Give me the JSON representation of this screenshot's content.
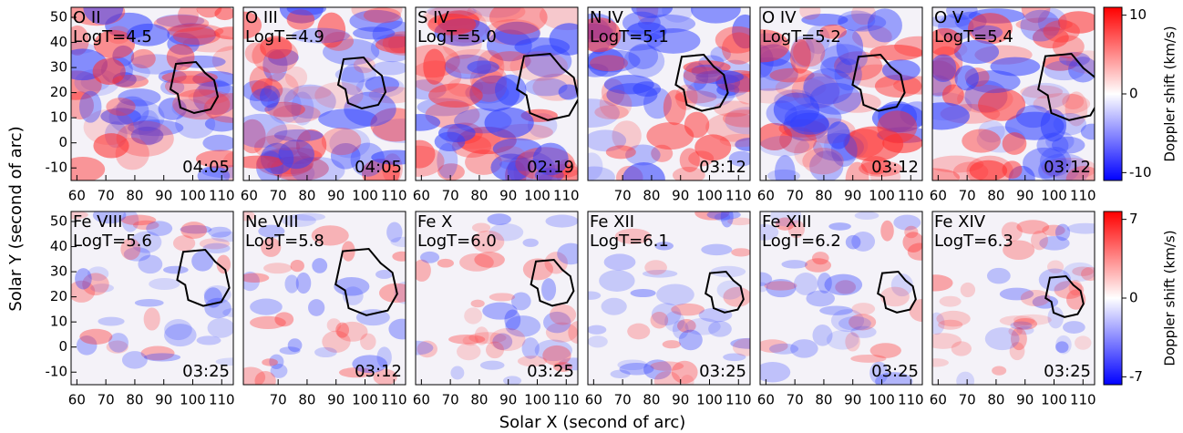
{
  "x_label": "Solar X (second of arc)",
  "y_label": "Solar Y (second of arc)",
  "chart_data": [
    {
      "type": "heatmap",
      "ion": "O II",
      "logt": "LogT=4.5",
      "time": "04:05",
      "xlim": [
        58,
        114
      ],
      "xticks": [
        60,
        70,
        80,
        90,
        100,
        110
      ],
      "ylim": [
        -15,
        54
      ],
      "yticks": [
        -10,
        0,
        10,
        20,
        30,
        40,
        50
      ]
    },
    {
      "type": "heatmap",
      "ion": "O III",
      "logt": "LogT=4.9",
      "time": "04:05",
      "xlim": [
        58,
        114
      ],
      "xticks": [
        60,
        70,
        80,
        90,
        100,
        110
      ]
    },
    {
      "type": "heatmap",
      "ion": "S IV",
      "logt": "LogT=5.0",
      "time": "02:19",
      "xlim": [
        58,
        114
      ],
      "xticks": [
        60,
        70,
        80,
        90,
        100,
        110
      ]
    },
    {
      "type": "heatmap",
      "ion": "N IV",
      "logt": "LogT=5.1",
      "time": "03:12",
      "xlim": [
        58,
        114
      ],
      "xticks": [
        70,
        80,
        90,
        100,
        110
      ]
    },
    {
      "type": "heatmap",
      "ion": "O IV",
      "logt": "LogT=5.2",
      "time": "03:12",
      "xlim": [
        58,
        114
      ],
      "xticks": [
        60,
        70,
        80,
        90,
        100,
        110
      ]
    },
    {
      "type": "heatmap",
      "ion": "O V",
      "logt": "LogT=5.4",
      "time": "03:12",
      "xlim": [
        58,
        114
      ],
      "xticks": [
        60,
        70,
        80,
        90,
        100,
        110
      ]
    },
    {
      "type": "heatmap",
      "ion": "Fe VIII",
      "logt": "LogT=5.6",
      "time": "03:25",
      "xlim": [
        58,
        114
      ],
      "xticks": [
        60,
        70,
        80,
        90,
        100,
        110
      ],
      "ylim": [
        -15,
        54
      ],
      "yticks": [
        -10,
        0,
        10,
        20,
        30,
        40,
        50
      ]
    },
    {
      "type": "heatmap",
      "ion": "Ne VIII",
      "logt": "LogT=5.8",
      "time": "03:12",
      "xlim": [
        58,
        114
      ],
      "xticks": [
        70,
        80,
        90,
        100,
        110
      ]
    },
    {
      "type": "heatmap",
      "ion": "Fe X",
      "logt": "LogT=6.0",
      "time": "03:25",
      "xlim": [
        58,
        114
      ],
      "xticks": [
        60,
        70,
        80,
        90,
        100,
        110
      ]
    },
    {
      "type": "heatmap",
      "ion": "Fe XII",
      "logt": "LogT=6.1",
      "time": "03:25",
      "xlim": [
        58,
        114
      ],
      "xticks": [
        60,
        70,
        80,
        90,
        100,
        110
      ]
    },
    {
      "type": "heatmap",
      "ion": "Fe XIII",
      "logt": "LogT=6.2",
      "time": "03:25",
      "xlim": [
        58,
        114
      ],
      "xticks": [
        60,
        70,
        80,
        90,
        100,
        110
      ]
    },
    {
      "type": "heatmap",
      "ion": "Fe XIV",
      "logt": "LogT=6.3",
      "time": "03:25",
      "xlim": [
        58,
        114
      ],
      "xticks": [
        60,
        70,
        80,
        90,
        100,
        110
      ]
    },
    {
      "type": "colorbar",
      "label": "Doppler shift (km/s)",
      "ylim": [
        -11,
        11
      ],
      "yticks": [
        -10,
        0,
        10
      ],
      "colors": [
        "#0000ff",
        "#ffffff",
        "#ff0000"
      ]
    },
    {
      "type": "colorbar",
      "label": "Doppler shift (km/s)",
      "ylim": [
        -7.7,
        7.7
      ],
      "yticks": [
        -7,
        0,
        7
      ],
      "colors": [
        "#0000ff",
        "#ffffff",
        "#ff0000"
      ]
    }
  ]
}
